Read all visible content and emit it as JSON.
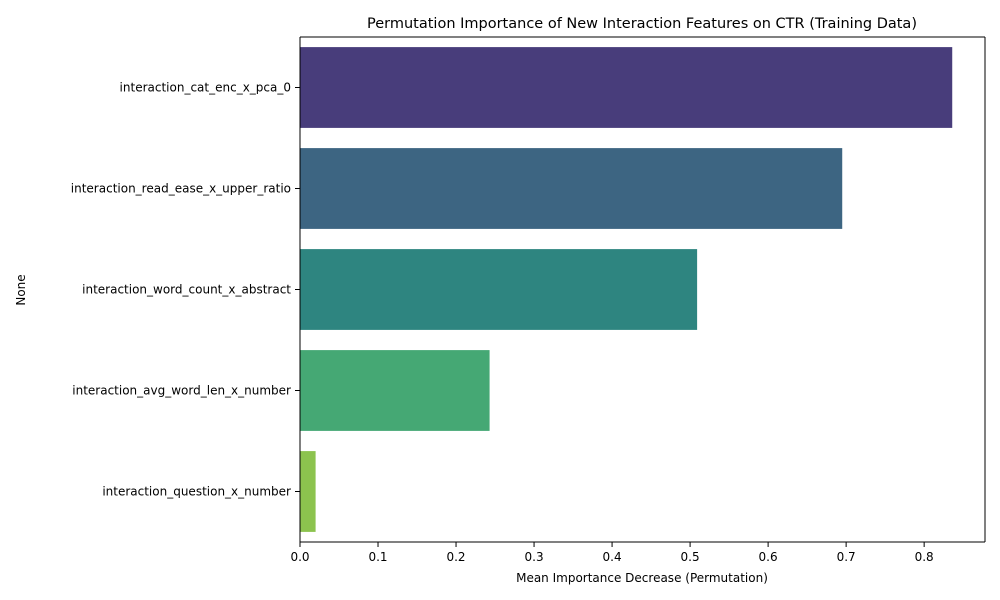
{
  "chart_data": {
    "type": "bar",
    "orientation": "horizontal",
    "title": "Permutation Importance of New Interaction Features on CTR (Training Data)",
    "xlabel": "Mean Importance Decrease (Permutation)",
    "ylabel": "None",
    "categories": [
      "interaction_cat_enc_x_pca_0",
      "interaction_read_ease_x_upper_ratio",
      "interaction_word_count_x_abstract",
      "interaction_avg_word_len_x_number",
      "interaction_question_x_number"
    ],
    "values": [
      0.836,
      0.695,
      0.509,
      0.243,
      0.02
    ],
    "colors": [
      "#483d7b",
      "#3d6582",
      "#2e8580",
      "#45a874",
      "#8cc34e"
    ],
    "xlim": [
      0,
      0.878
    ],
    "xticks": [
      0.0,
      0.1,
      0.2,
      0.3,
      0.4,
      0.5,
      0.6,
      0.7,
      0.8
    ],
    "xtick_labels": [
      "0.0",
      "0.1",
      "0.2",
      "0.3",
      "0.4",
      "0.5",
      "0.6",
      "0.7",
      "0.8"
    ],
    "grid": false,
    "legend": "none"
  }
}
